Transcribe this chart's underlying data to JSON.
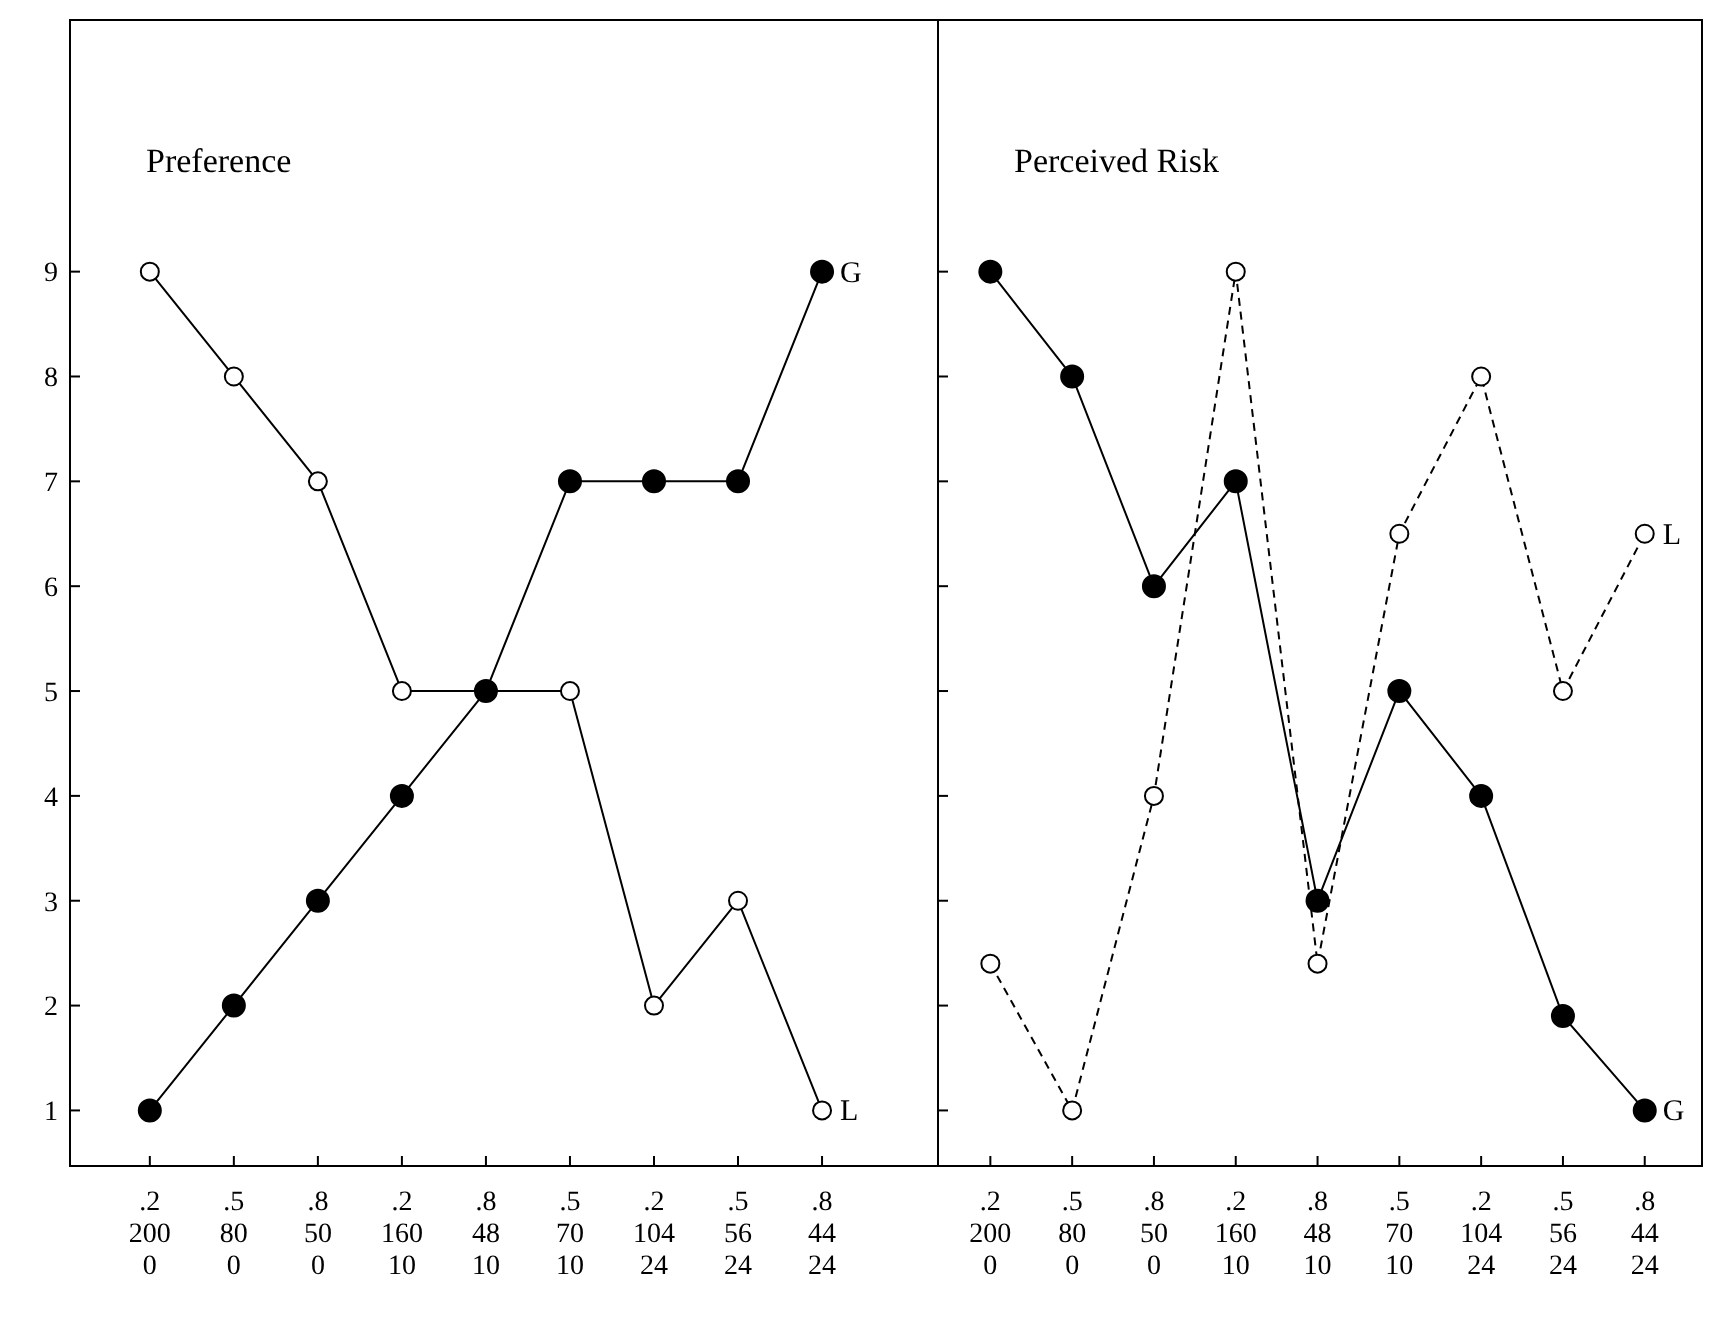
{
  "chart_data": [
    {
      "type": "line",
      "title": "Preference",
      "categories": [
        ".2\n200\n0",
        ".5\n80\n0",
        ".8\n50\n0",
        ".2\n160\n10",
        ".8\n48\n10",
        ".5\n70\n10",
        ".2\n104\n24",
        ".5\n56\n24",
        ".8\n44\n24"
      ],
      "ylim": [
        0.47,
        11.4
      ],
      "yticks": [
        1,
        2,
        3,
        4,
        5,
        6,
        7,
        8,
        9
      ],
      "grid": false,
      "series": [
        {
          "name": "G",
          "color": "#000000",
          "marker": "circle",
          "line_style": "solid",
          "values": [
            1,
            2,
            3,
            4,
            5,
            7,
            7,
            7,
            9
          ]
        },
        {
          "name": "L",
          "color": "#000000",
          "marker": "open circle",
          "line_style": "solid",
          "values": [
            9,
            8,
            7,
            5,
            5,
            5,
            2,
            3,
            1
          ]
        }
      ]
    },
    {
      "type": "line",
      "title": "Perceived Risk",
      "categories": [
        ".2\n200\n0",
        ".5\n80\n0",
        ".8\n50\n0",
        ".2\n160\n10",
        ".8\n48\n10",
        ".5\n70\n10",
        ".2\n104\n24",
        ".5\n56\n24",
        ".8\n44\n24"
      ],
      "ylim": [
        0.47,
        11.4
      ],
      "yticks": [
        1,
        2,
        3,
        4,
        5,
        6,
        7,
        8,
        9
      ],
      "tick_labels": "x",
      "grid": false,
      "series": [
        {
          "name": "G",
          "color": "#000000",
          "marker": "circle",
          "line_style": "solid",
          "values": [
            9,
            8,
            6,
            7,
            3,
            5,
            4,
            1.9,
            1
          ]
        },
        {
          "name": "L",
          "color": "#000000",
          "marker": "open circle",
          "line_style": "dashed",
          "values": [
            2.4,
            1,
            4,
            9,
            2.4,
            6.5,
            8,
            5,
            6.5
          ]
        }
      ]
    }
  ]
}
